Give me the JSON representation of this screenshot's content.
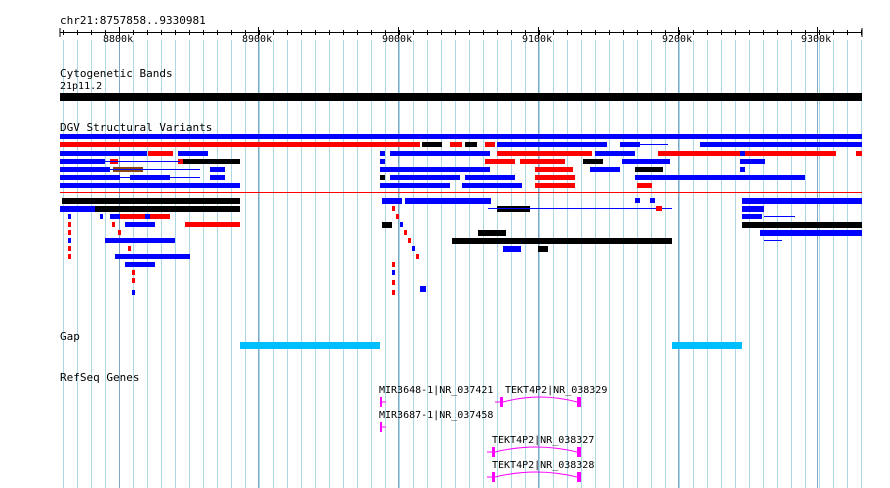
{
  "browser": {
    "location": "chr21:8757858..9330981",
    "ruler_ticks": [
      "8800k",
      "8900k",
      "9000k",
      "9100k",
      "9200k",
      "9300k"
    ]
  },
  "tracks": {
    "cytoband": {
      "title": "Cytogenetic Bands",
      "band": "21p11.2"
    },
    "dgv": {
      "title": "DGV Structural Variants"
    },
    "gap": {
      "title": "Gap"
    },
    "refseq": {
      "title": "RefSeq Genes"
    }
  },
  "genes": [
    {
      "label": "MIR3648-1|NR_037421"
    },
    {
      "label": "TEKT4P2|NR_038329"
    },
    {
      "label": "MIR3687-1|NR_037458"
    },
    {
      "label": "TEKT4P2|NR_038327"
    },
    {
      "label": "TEKT4P2|NR_038328"
    }
  ],
  "colors": {
    "loss": "#ff0000",
    "gain": "#0000ff",
    "complex": "#000000",
    "inversion": "#8b4513",
    "gap": "#00bfff",
    "gene": "#ff00ff",
    "grid": "#add8e6"
  }
}
